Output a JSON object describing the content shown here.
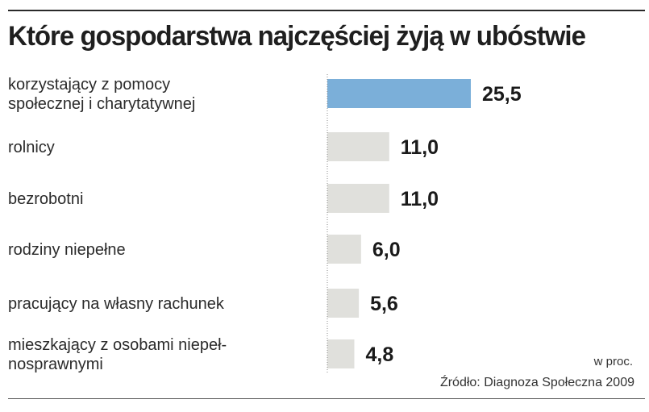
{
  "chart_data": {
    "type": "bar",
    "orientation": "horizontal",
    "title": "Które gospodarstwa najczęściej żyją w ubóstwie",
    "unit": "w proc.",
    "source": "Źródło: Diagnoza Społeczna 2009",
    "categories": [
      [
        "korzystający z pomocy",
        "społecznej i charytatywnej"
      ],
      [
        "rolnicy"
      ],
      [
        "bezrobotni"
      ],
      [
        "rodziny niepełne"
      ],
      [
        "pracujący na własny rachunek"
      ],
      [
        "mieszkający z osobami niepeł-",
        "nosprawnymi"
      ]
    ],
    "values": [
      25.5,
      11.0,
      11.0,
      6.0,
      5.6,
      4.8
    ],
    "value_labels": [
      "25,5",
      "11,0",
      "11,0",
      "6,0",
      "5,6",
      "4,8"
    ],
    "xlim": [
      0,
      25.5
    ],
    "grid": false,
    "colors": {
      "highlight": "#7bafd9",
      "bar": "#e0e0dc",
      "axis": "#888888"
    },
    "highlight_index": 0
  }
}
